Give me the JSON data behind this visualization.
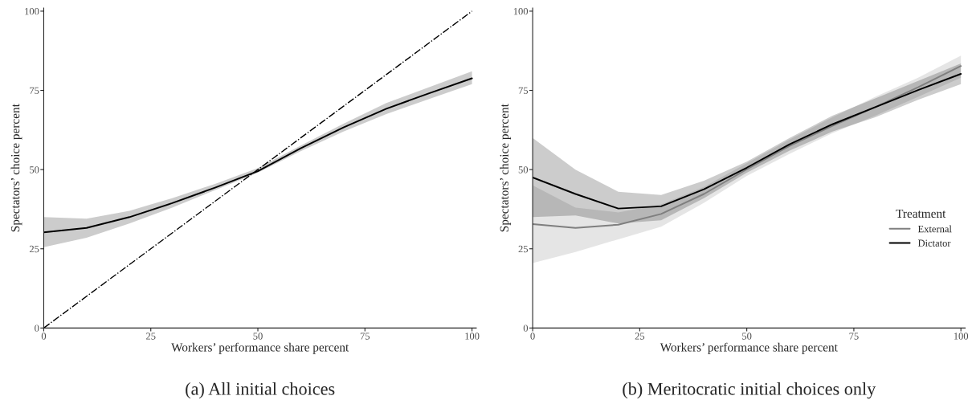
{
  "chart_data": [
    {
      "type": "line",
      "title": "(a) All initial choices",
      "xlabel": "Workers’ performance share percent",
      "ylabel": "Spectators’ choice percent",
      "x": [
        0,
        10,
        20,
        30,
        40,
        50,
        60,
        70,
        80,
        90,
        100
      ],
      "series": [
        {
          "color": "#000000",
          "values": [
            30.2,
            31.6,
            35,
            39.4,
            44.3,
            49.5,
            56.7,
            63.3,
            69.2,
            74.1,
            78.8
          ],
          "lower": [
            25.5,
            28.5,
            33,
            38,
            43.5,
            49,
            55.8,
            62,
            67.5,
            72.3,
            77
          ],
          "upper": [
            35,
            34.5,
            37,
            41,
            45.5,
            50.5,
            57.6,
            64.5,
            71,
            76,
            81
          ]
        },
        {
          "color": "#000000",
          "x": [
            0,
            100
          ],
          "values": [
            0,
            100
          ],
          "line_style": "dashdot"
        }
      ],
      "xlim": [
        0,
        101
      ],
      "ylim": [
        0,
        101
      ],
      "xticks": [
        0,
        25,
        50,
        75,
        100
      ],
      "yticks": [
        0,
        25,
        50,
        75,
        100
      ],
      "grid": false,
      "legend": false
    },
    {
      "type": "line",
      "title": "(b) Meritocratic initial choices only",
      "xlabel": "Workers’ performance share percent",
      "ylabel": "Spectators’ choice percent",
      "x": [
        0,
        10,
        20,
        30,
        40,
        50,
        60,
        70,
        80,
        90,
        100
      ],
      "series": [
        {
          "name": "External",
          "color": "#7f7f7f",
          "values": [
            32.8,
            31.6,
            32.6,
            36,
            42.3,
            50.1,
            57.5,
            63.8,
            69.7,
            76,
            82.7
          ],
          "lower": [
            20.5,
            24,
            28,
            32,
            39.5,
            48,
            55,
            61.5,
            67,
            73,
            79
          ],
          "upper": [
            45,
            38,
            36.5,
            39,
            44.5,
            52,
            59.5,
            66.5,
            73,
            79,
            86
          ]
        },
        {
          "name": "Dictator",
          "color": "#000000",
          "values": [
            47.5,
            42.3,
            37.7,
            38.4,
            43.8,
            50.6,
            58,
            64.3,
            69.7,
            75.1,
            80.2
          ],
          "lower": [
            35,
            35.5,
            33,
            34,
            41,
            49,
            56,
            62,
            66.5,
            72,
            77
          ],
          "upper": [
            60,
            50,
            43,
            42,
            46.5,
            52.5,
            60,
            67,
            72.5,
            78,
            83.5
          ]
        }
      ],
      "legend_title": "Treatment",
      "legend": "bottom right",
      "xlim": [
        0,
        101
      ],
      "ylim": [
        0,
        101
      ],
      "xticks": [
        0,
        25,
        50,
        75,
        100
      ],
      "yticks": [
        0,
        25,
        50,
        75,
        100
      ],
      "grid": false
    }
  ]
}
